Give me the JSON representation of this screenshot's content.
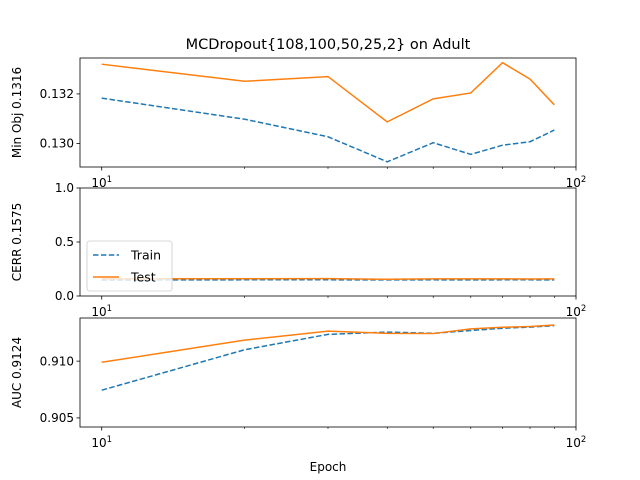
{
  "chart_data": {
    "type": "line",
    "title": "MCDropout{108,100,50,25,2} on Adult",
    "xlabel": "Epoch",
    "xscale": "log",
    "xlim": [
      9.0,
      100.0
    ],
    "x_ticks": [
      10,
      100
    ],
    "x_tick_labels": [
      "10¹",
      "10²"
    ],
    "x": [
      10,
      20,
      30,
      40,
      50,
      60,
      70,
      80,
      90
    ],
    "grid": false,
    "legend": {
      "placement": "lower-left",
      "panel": 1,
      "entries": [
        "Train",
        "Test"
      ]
    },
    "colors": {
      "Train": "#1f77b4",
      "Test": "#ff7f0e"
    },
    "panels": [
      {
        "ylabel": "Min Obj 0.1316",
        "ylim": [
          0.12905,
          0.13345
        ],
        "y_ticks": [
          0.13,
          0.132
        ],
        "y_tick_labels": [
          "0.130",
          "0.132"
        ],
        "series": [
          {
            "name": "Train",
            "style": "dashed",
            "values": [
              0.13183,
              0.13098,
              0.13027,
              0.12926,
              0.13003,
              0.12956,
              0.12993,
              0.13007,
              0.13054
            ]
          },
          {
            "name": "Test",
            "style": "solid",
            "values": [
              0.1332,
              0.13251,
              0.1327,
              0.13087,
              0.1318,
              0.13204,
              0.13326,
              0.1326,
              0.13156
            ]
          }
        ]
      },
      {
        "ylabel": "CERR 0.1575",
        "ylim": [
          0.0,
          1.0
        ],
        "y_ticks": [
          0.0,
          0.5,
          1.0
        ],
        "y_tick_labels": [
          "0.0",
          "0.5",
          "1.0"
        ],
        "series": [
          {
            "name": "Train",
            "style": "dashed",
            "values": [
              0.148,
              0.15,
              0.15,
              0.149,
              0.15,
              0.149,
              0.15,
              0.15,
              0.149
            ]
          },
          {
            "name": "Test",
            "style": "solid",
            "values": [
              0.16,
              0.16,
              0.161,
              0.155,
              0.159,
              0.159,
              0.159,
              0.158,
              0.159
            ]
          }
        ]
      },
      {
        "ylabel": "AUC 0.9124",
        "ylim": [
          0.9042,
          0.9138
        ],
        "y_ticks": [
          0.905,
          0.91
        ],
        "y_tick_labels": [
          "0.905",
          "0.910"
        ],
        "series": [
          {
            "name": "Train",
            "style": "dashed",
            "values": [
              0.90744,
              0.911,
              0.91236,
              0.91256,
              0.91245,
              0.9127,
              0.9129,
              0.913,
              0.91313
            ]
          },
          {
            "name": "Test",
            "style": "solid",
            "values": [
              0.9099,
              0.91185,
              0.91264,
              0.91245,
              0.91243,
              0.91284,
              0.91298,
              0.91305,
              0.91318
            ]
          }
        ]
      }
    ]
  }
}
